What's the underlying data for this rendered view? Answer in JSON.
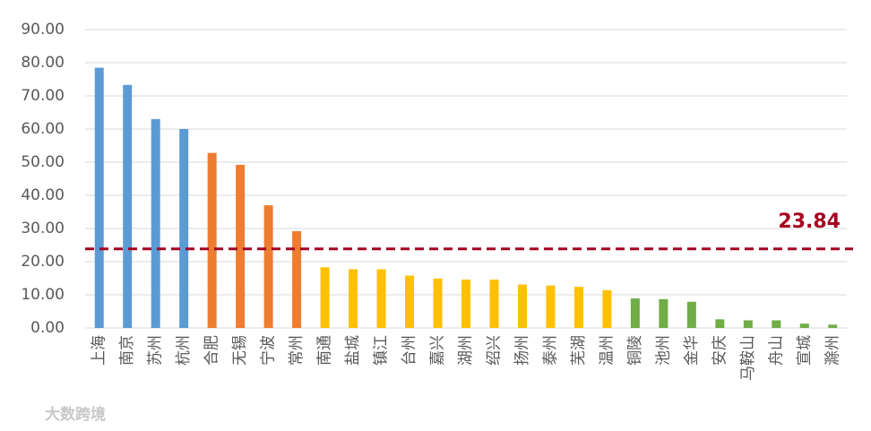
{
  "chart_data": {
    "type": "bar",
    "categories": [
      "上海",
      "南京",
      "苏州",
      "杭州",
      "合肥",
      "无锡",
      "宁波",
      "常州",
      "南通",
      "盐城",
      "镇江",
      "台州",
      "嘉兴",
      "湖州",
      "绍兴",
      "扬州",
      "泰州",
      "芜湖",
      "温州",
      "铜陵",
      "池州",
      "金华",
      "安庆",
      "马鞍山",
      "舟山",
      "宣城",
      "滁州"
    ],
    "values": [
      78.5,
      73.3,
      63,
      60,
      52.8,
      49.2,
      37,
      29.2,
      18.3,
      17.7,
      17.7,
      15.8,
      14.9,
      14.6,
      14.6,
      13.1,
      12.8,
      12.4,
      11.4,
      8.9,
      8.7,
      7.9,
      2.6,
      2.3,
      2.3,
      1.3,
      1.0
    ],
    "colors": [
      "#5b9bd5",
      "#5b9bd5",
      "#5b9bd5",
      "#5b9bd5",
      "#ed7d31",
      "#ed7d31",
      "#ed7d31",
      "#ed7d31",
      "#ffc000",
      "#ffc000",
      "#ffc000",
      "#ffc000",
      "#ffc000",
      "#ffc000",
      "#ffc000",
      "#ffc000",
      "#ffc000",
      "#ffc000",
      "#ffc000",
      "#70ad47",
      "#70ad47",
      "#70ad47",
      "#70ad47",
      "#70ad47",
      "#70ad47",
      "#70ad47",
      "#70ad47"
    ],
    "ylim": [
      0,
      90
    ],
    "yticks": [
      {
        "value": 0,
        "label": "0.00"
      },
      {
        "value": 10,
        "label": "10.00"
      },
      {
        "value": 20,
        "label": "20.00"
      },
      {
        "value": 30,
        "label": "30.00"
      },
      {
        "value": 40,
        "label": "40.00"
      },
      {
        "value": 50,
        "label": "50.00"
      },
      {
        "value": 60,
        "label": "60.00"
      },
      {
        "value": 70,
        "label": "70.00"
      },
      {
        "value": 80,
        "label": "80.00"
      },
      {
        "value": 90,
        "label": "90.00"
      }
    ],
    "grid": true,
    "reference_line": {
      "value": 23.84,
      "label": "23.84",
      "color": "#a50021"
    },
    "watermark": "大数跨境"
  }
}
